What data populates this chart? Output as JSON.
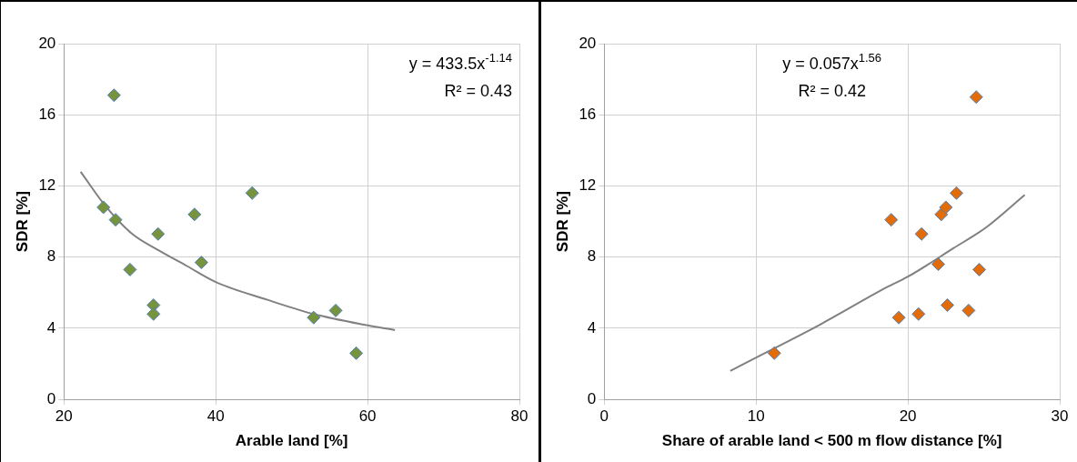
{
  "chart_data": [
    {
      "type": "scatter",
      "xlabel": "Arable land [%]",
      "ylabel": "SDR [%]",
      "xlim": [
        20,
        80
      ],
      "xticks": [
        20,
        40,
        60,
        80
      ],
      "ylim": [
        0,
        20
      ],
      "yticks": [
        0,
        4,
        8,
        12,
        16,
        20
      ],
      "grid": true,
      "legend": false,
      "annotations": [
        "y = 433.5x$^{-1.14}$",
        "R² = 0.43"
      ],
      "series": [
        {
          "marker": "diamond",
          "color": "#77933c",
          "x": [
            26.6,
            25.2,
            26.8,
            28.7,
            31.8,
            31.8,
            32.4,
            37.2,
            38.1,
            44.8,
            52.9,
            55.8,
            58.5
          ],
          "values": [
            17.1,
            10.8,
            10.1,
            7.3,
            5.3,
            4.8,
            9.3,
            10.4,
            7.7,
            11.6,
            4.6,
            5.0,
            2.6
          ]
        },
        {
          "type": "line",
          "marker": "none",
          "color": "#808080",
          "x": [
            22.2,
            25.6,
            29.0,
            32.4,
            36.2,
            40.0,
            46.8,
            52.9,
            59.5,
            63.6
          ],
          "values": [
            12.8,
            10.8,
            9.3,
            8.4,
            7.5,
            6.6,
            5.6,
            4.8,
            4.2,
            3.9
          ]
        }
      ]
    },
    {
      "type": "scatter",
      "xlabel": "Share of arable land < 500 m flow distance [%]",
      "ylabel": "SDR [%]",
      "xlim": [
        0,
        30
      ],
      "xticks": [
        0,
        10,
        20,
        30
      ],
      "ylim": [
        0,
        20
      ],
      "yticks": [
        0,
        4,
        8,
        12,
        16,
        20
      ],
      "grid": true,
      "legend": false,
      "annotations": [
        "y = 0.057x$^{1.56}$",
        "R² = 0.42"
      ],
      "series": [
        {
          "marker": "diamond",
          "color": "#e36c09",
          "x": [
            11.2,
            18.9,
            19.4,
            20.7,
            20.9,
            22.0,
            22.2,
            22.5,
            22.6,
            23.2,
            24.0,
            24.5,
            24.7
          ],
          "values": [
            2.6,
            10.1,
            4.6,
            4.8,
            9.3,
            7.6,
            10.4,
            10.8,
            5.3,
            11.6,
            5.0,
            17.0,
            7.3
          ]
        },
        {
          "type": "line",
          "marker": "none",
          "color": "#808080",
          "x": [
            8.3,
            10.8,
            14.2,
            18.6,
            20.0,
            23.0,
            25.2,
            27.7
          ],
          "values": [
            1.6,
            2.7,
            4.2,
            6.3,
            6.9,
            8.5,
            9.7,
            11.5
          ]
        }
      ]
    }
  ]
}
